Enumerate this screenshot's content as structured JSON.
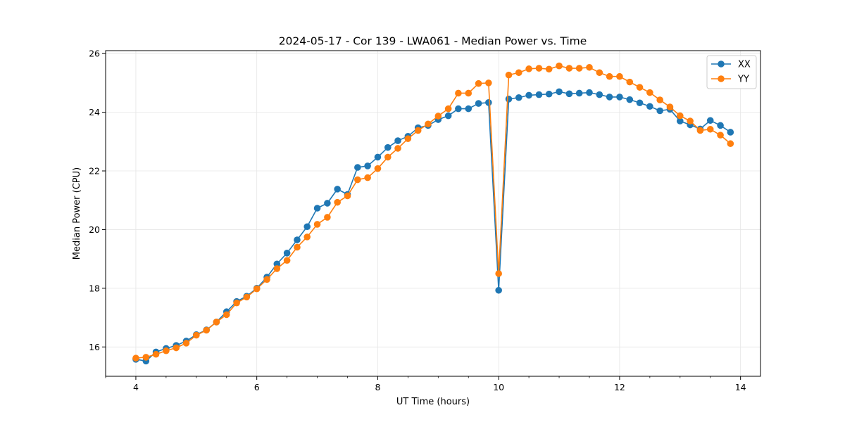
{
  "chart_data": {
    "type": "line",
    "title": "2024-05-17 - Cor 139 - LWA061 - Median Power vs. Time",
    "xlabel": "UT Time (hours)",
    "ylabel": "Median Power (CPU)",
    "xlim": [
      3.5,
      14.33
    ],
    "ylim": [
      15,
      26.1
    ],
    "xticks": [
      4,
      6,
      8,
      10,
      12,
      14
    ],
    "yticks": [
      16,
      18,
      20,
      22,
      24,
      26
    ],
    "grid": true,
    "legend_position": "top-right",
    "x": [
      4.0,
      4.167,
      4.333,
      4.5,
      4.667,
      4.833,
      5.0,
      5.167,
      5.333,
      5.5,
      5.667,
      5.833,
      6.0,
      6.167,
      6.333,
      6.5,
      6.667,
      6.833,
      7.0,
      7.167,
      7.333,
      7.5,
      7.667,
      7.833,
      8.0,
      8.167,
      8.333,
      8.5,
      8.667,
      8.833,
      9.0,
      9.167,
      9.333,
      9.5,
      9.667,
      9.833,
      10.0,
      10.167,
      10.333,
      10.5,
      10.667,
      10.833,
      11.0,
      11.167,
      11.333,
      11.5,
      11.667,
      11.833,
      12.0,
      12.167,
      12.333,
      12.5,
      12.667,
      12.833,
      13.0,
      13.167,
      13.333,
      13.5,
      13.667,
      13.833
    ],
    "series": [
      {
        "name": "XX",
        "color": "#1f77b4",
        "values": [
          15.58,
          15.52,
          15.83,
          15.95,
          16.05,
          16.2,
          16.42,
          16.58,
          16.85,
          17.2,
          17.55,
          17.73,
          18.0,
          18.38,
          18.83,
          19.2,
          19.65,
          20.1,
          20.73,
          20.9,
          21.38,
          21.2,
          22.12,
          22.17,
          22.47,
          22.8,
          23.03,
          23.18,
          23.47,
          23.55,
          23.75,
          23.88,
          24.12,
          24.12,
          24.3,
          24.33,
          17.93,
          24.45,
          24.5,
          24.58,
          24.6,
          24.62,
          24.7,
          24.63,
          24.65,
          24.67,
          24.6,
          24.52,
          24.52,
          24.43,
          24.32,
          24.2,
          24.05,
          24.1,
          23.7,
          23.57,
          23.43,
          23.72,
          23.55,
          23.32
        ]
      },
      {
        "name": "YY",
        "color": "#ff7f0e",
        "values": [
          15.62,
          15.65,
          15.75,
          15.87,
          15.97,
          16.13,
          16.4,
          16.57,
          16.85,
          17.1,
          17.5,
          17.7,
          17.98,
          18.3,
          18.67,
          18.95,
          19.4,
          19.75,
          20.18,
          20.42,
          20.93,
          21.15,
          21.7,
          21.77,
          22.08,
          22.47,
          22.77,
          23.1,
          23.38,
          23.6,
          23.87,
          24.12,
          24.65,
          24.65,
          24.98,
          25.0,
          18.5,
          25.27,
          25.35,
          25.48,
          25.5,
          25.47,
          25.58,
          25.5,
          25.5,
          25.53,
          25.35,
          25.22,
          25.22,
          25.03,
          24.85,
          24.67,
          24.42,
          24.18,
          23.88,
          23.7,
          23.38,
          23.42,
          23.22,
          22.93
        ]
      }
    ]
  }
}
